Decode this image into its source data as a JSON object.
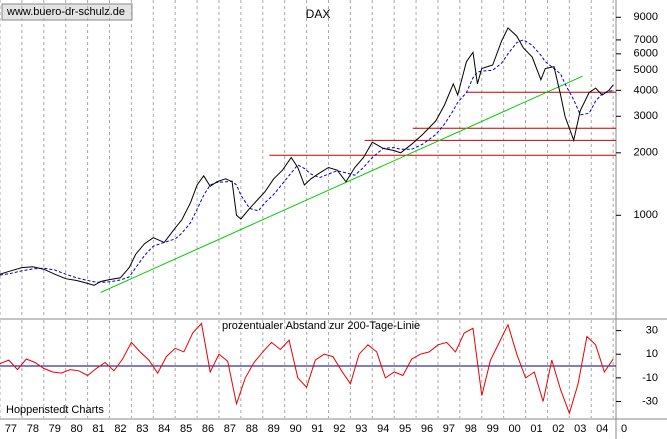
{
  "source": "www.buero-dr-schulz.de",
  "footer": "Hoppenstedt Charts",
  "chart_data": [
    {
      "type": "line",
      "title": "DAX",
      "log_scale": true,
      "grid": "x",
      "xlim": [
        1977,
        2005.13
      ],
      "ylim": [
        320,
        10900
      ],
      "xticks": [
        {
          "value": 1977,
          "label": "77"
        },
        {
          "value": 1978,
          "label": "78"
        },
        {
          "value": 1979,
          "label": "79"
        },
        {
          "value": 1980,
          "label": "80"
        },
        {
          "value": 1981,
          "label": "81"
        },
        {
          "value": 1982,
          "label": "82"
        },
        {
          "value": 1983,
          "label": "83"
        },
        {
          "value": 1984,
          "label": "84"
        },
        {
          "value": 1985,
          "label": "85"
        },
        {
          "value": 1986,
          "label": "86"
        },
        {
          "value": 1987,
          "label": "87"
        },
        {
          "value": 1988,
          "label": "88"
        },
        {
          "value": 1989,
          "label": "89"
        },
        {
          "value": 1990,
          "label": "90"
        },
        {
          "value": 1991,
          "label": "91"
        },
        {
          "value": 1992,
          "label": "92"
        },
        {
          "value": 1993,
          "label": "93"
        },
        {
          "value": 1994,
          "label": "94"
        },
        {
          "value": 1995,
          "label": "95"
        },
        {
          "value": 1996,
          "label": "96"
        },
        {
          "value": 1997,
          "label": "97"
        },
        {
          "value": 1998,
          "label": "98"
        },
        {
          "value": 1999,
          "label": "99"
        },
        {
          "value": 2000,
          "label": "00"
        },
        {
          "value": 2001,
          "label": "01"
        },
        {
          "value": 2002,
          "label": "02"
        },
        {
          "value": 2003,
          "label": "03"
        },
        {
          "value": 2004,
          "label": "04"
        },
        {
          "value": 2005,
          "label": "0"
        }
      ],
      "yticks": [
        1000,
        2000,
        3000,
        4000,
        5000,
        6000,
        7000,
        9000
      ],
      "x": [
        1977.0,
        1977.5,
        1978.0,
        1978.5,
        1979.0,
        1979.5,
        1980.0,
        1980.5,
        1981.0,
        1981.3,
        1981.6,
        1982.0,
        1982.5,
        1982.9,
        1983.2,
        1983.6,
        1984.0,
        1984.5,
        1985.0,
        1985.3,
        1985.7,
        1986.0,
        1986.3,
        1986.6,
        1986.9,
        1987.3,
        1987.6,
        1987.8,
        1988.0,
        1988.4,
        1988.8,
        1989.1,
        1989.5,
        1989.9,
        1990.3,
        1990.6,
        1990.9,
        1991.2,
        1991.6,
        1992.0,
        1992.4,
        1992.8,
        1993.2,
        1993.6,
        1994.0,
        1994.5,
        1995.0,
        1995.3,
        1995.8,
        1996.3,
        1996.9,
        1997.3,
        1997.7,
        1997.9,
        1998.3,
        1998.6,
        1998.8,
        1999.0,
        1999.5,
        1999.9,
        2000.2,
        2000.6,
        2000.9,
        2001.3,
        2001.7,
        2001.9,
        2002.3,
        2002.6,
        2002.8,
        2003.2,
        2003.5,
        2003.9,
        2004.2,
        2004.5,
        2004.8,
        2005.0
      ],
      "series": [
        {
          "color": "#000000",
          "values": [
            520,
            540,
            560,
            565,
            550,
            520,
            495,
            485,
            470,
            460,
            480,
            490,
            500,
            560,
            650,
            730,
            780,
            740,
            870,
            950,
            1150,
            1400,
            1550,
            1380,
            1450,
            1500,
            1450,
            1000,
            960,
            1080,
            1200,
            1300,
            1500,
            1650,
            1900,
            1700,
            1400,
            1500,
            1600,
            1700,
            1650,
            1450,
            1700,
            1900,
            2250,
            2100,
            2050,
            2000,
            2200,
            2450,
            2850,
            3400,
            4300,
            3800,
            5500,
            6100,
            4300,
            5100,
            5300,
            6900,
            8000,
            7300,
            6400,
            5800,
            4500,
            5100,
            5200,
            3800,
            3000,
            2300,
            3200,
            3900,
            4100,
            3800,
            4000,
            4250
          ]
        },
        {
          "color": "#0000cc",
          "dashed": true,
          "values": [
            515,
            525,
            540,
            552,
            556,
            545,
            520,
            500,
            485,
            478,
            475,
            478,
            488,
            505,
            560,
            640,
            710,
            740,
            770,
            820,
            920,
            1070,
            1250,
            1400,
            1440,
            1450,
            1460,
            1400,
            1250,
            1080,
            1050,
            1150,
            1260,
            1420,
            1600,
            1750,
            1680,
            1580,
            1520,
            1580,
            1640,
            1600,
            1560,
            1700,
            1900,
            2100,
            2120,
            2080,
            2080,
            2200,
            2450,
            2750,
            3200,
            3500,
            3900,
            4600,
            4900,
            4950,
            5000,
            5400,
            6000,
            6800,
            7000,
            6600,
            5900,
            5500,
            5100,
            4800,
            4300,
            3600,
            3050,
            3100,
            3550,
            3850,
            3950,
            4000
          ]
        }
      ],
      "trendline": {
        "color": "#00cc00",
        "x": [
          1981.6,
          2003.6
        ],
        "values": [
          425,
          4680
        ]
      },
      "support_lines": {
        "color": "#cc0000",
        "values": [
          3916,
          2626,
          2297,
          1947
        ],
        "x_start": [
          1998.3,
          1995.85,
          1993.65,
          1989.3
        ]
      }
    },
    {
      "type": "line",
      "subtitle": "prozentualer Abstand zur 200-Tage-Linie",
      "xlim": [
        1977,
        2005.13
      ],
      "ylim": [
        -44,
        39
      ],
      "yticks": [
        30,
        10,
        -10,
        -30
      ],
      "x": [
        1977.0,
        1977.4,
        1977.8,
        1978.2,
        1978.6,
        1979.0,
        1979.4,
        1979.8,
        1980.2,
        1980.6,
        1981.0,
        1981.4,
        1981.8,
        1982.2,
        1982.6,
        1983.0,
        1983.4,
        1983.8,
        1984.2,
        1984.6,
        1985.0,
        1985.4,
        1985.8,
        1986.2,
        1986.6,
        1987.0,
        1987.4,
        1987.8,
        1988.2,
        1988.6,
        1989.0,
        1989.4,
        1989.8,
        1990.2,
        1990.6,
        1991.0,
        1991.4,
        1991.8,
        1992.2,
        1992.6,
        1993.0,
        1993.4,
        1993.8,
        1994.2,
        1994.6,
        1995.0,
        1995.4,
        1995.8,
        1996.2,
        1996.6,
        1997.0,
        1997.4,
        1997.8,
        1998.2,
        1998.6,
        1999.0,
        1999.4,
        1999.8,
        2000.2,
        2000.6,
        2001.0,
        2001.4,
        2001.8,
        2002.2,
        2002.6,
        2003.0,
        2003.4,
        2003.8,
        2004.2,
        2004.6,
        2005.0
      ],
      "series": [
        {
          "color": "#ee0000",
          "values": [
            2,
            5,
            -3,
            6,
            3,
            -2,
            -5,
            -6,
            -3,
            -4,
            -8,
            -2,
            3,
            -4,
            6,
            20,
            12,
            5,
            -6,
            8,
            15,
            12,
            28,
            36,
            -5,
            10,
            4,
            -32,
            -10,
            3,
            12,
            20,
            14,
            22,
            -10,
            -18,
            5,
            10,
            8,
            -4,
            -15,
            10,
            18,
            12,
            -10,
            -5,
            -8,
            6,
            10,
            12,
            18,
            20,
            12,
            28,
            32,
            -25,
            5,
            20,
            35,
            10,
            -10,
            -5,
            -30,
            5,
            -20,
            -40,
            -15,
            25,
            18,
            -5,
            6
          ]
        }
      ]
    }
  ]
}
